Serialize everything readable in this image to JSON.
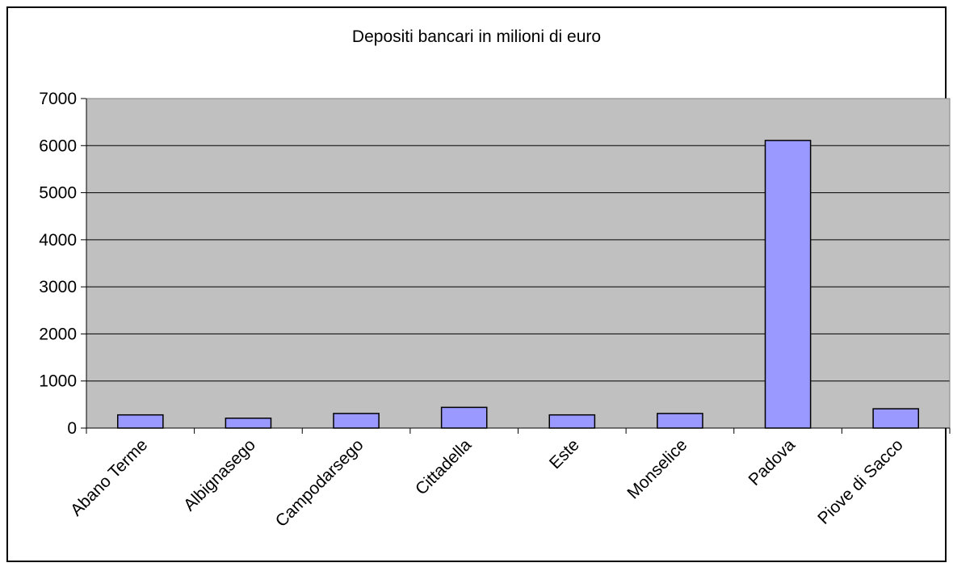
{
  "chart_data": {
    "type": "bar",
    "title": "Depositi bancari in milioni di euro",
    "xlabel": "",
    "ylabel": "",
    "categories": [
      "Abano Terme",
      "Albignasego",
      "Campodarsego",
      "Cittadella",
      "Este",
      "Monselice",
      "Padova",
      "Piove di Sacco"
    ],
    "values": [
      280,
      210,
      310,
      440,
      280,
      310,
      6110,
      410
    ],
    "ylim": [
      0,
      7000
    ],
    "yticks": [
      0,
      1000,
      2000,
      3000,
      4000,
      5000,
      6000,
      7000
    ],
    "grid": true,
    "legend": "none",
    "colors": {
      "plot_background": "#c0c0c0",
      "bar_fill": "#9999ff",
      "bar_stroke": "#000000",
      "gridline": "#000000"
    }
  }
}
